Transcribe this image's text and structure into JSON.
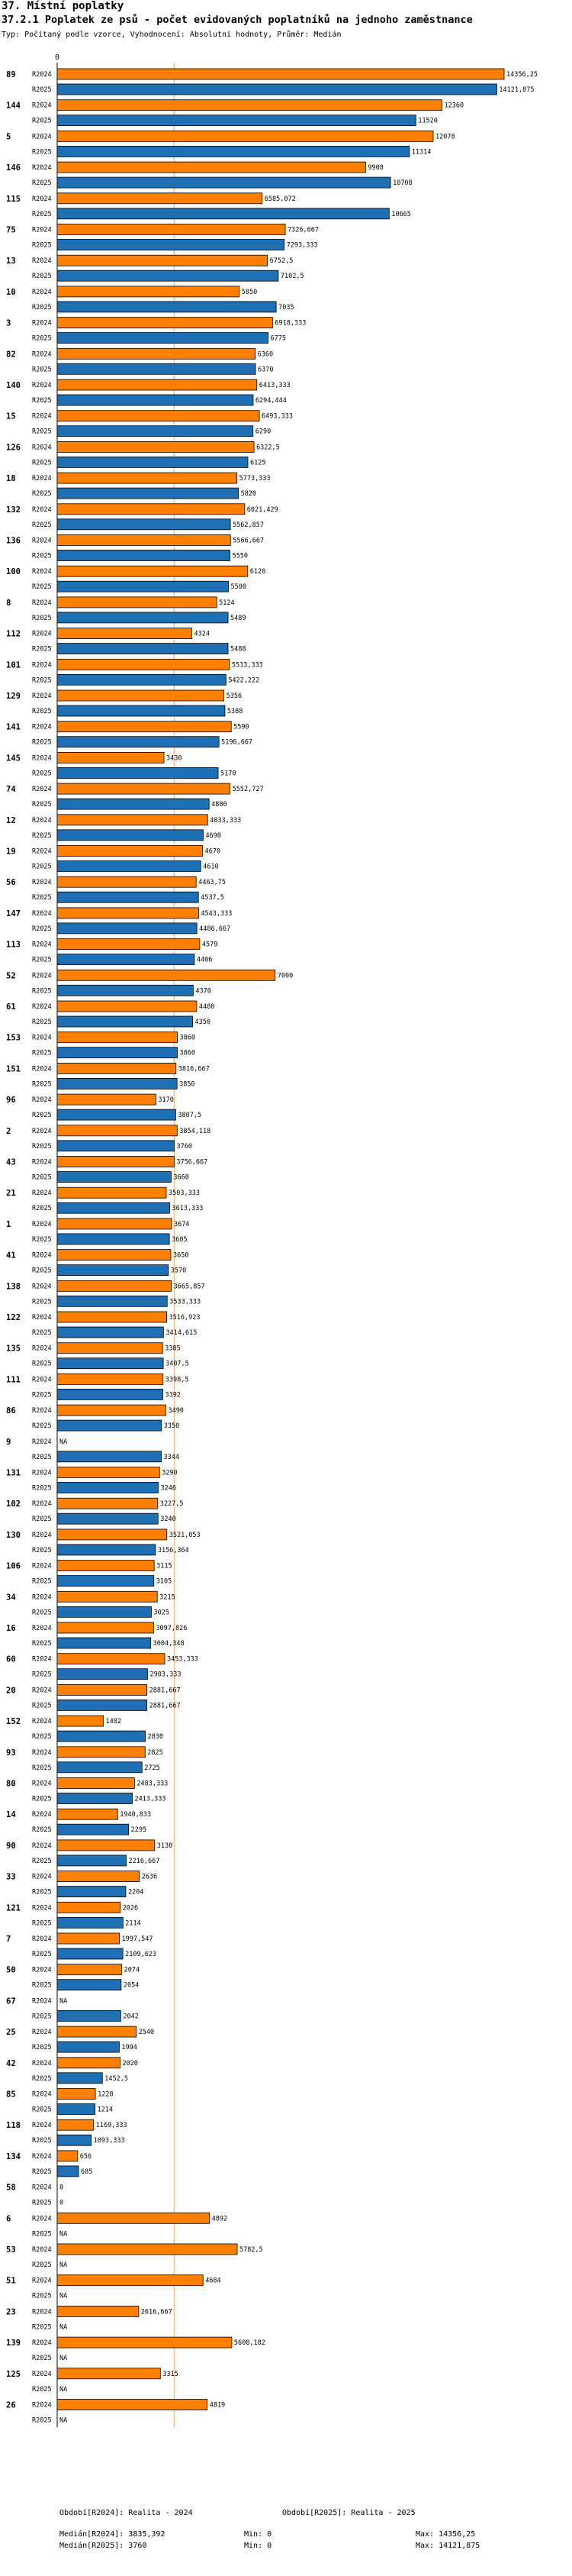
{
  "header": {
    "title": "37. Místní poplatky",
    "subtitle": "37.2.1 Poplatek ze psů - počet evidovaných poplatníků na jednoho zaměstnance",
    "meta": "Typ: Počítaný podle vzorce, Vyhodnocení: Absolutní hodnoty, Průměr: Medián"
  },
  "colors": {
    "r2024": "#ff8000",
    "r2025": "#1f6fb5",
    "median": "#f4c08a",
    "axis": "#000000"
  },
  "chart_data": {
    "type": "bar",
    "orientation": "horizontal",
    "title": "37.2.1 Poplatek ze psů - počet evidovaných poplatníků na jednoho zaměstnance",
    "axis_zero_label": "0",
    "xlim": [
      0,
      14356.25
    ],
    "median": 3760,
    "series_names": [
      "R2024",
      "R2025"
    ],
    "groups": [
      {
        "id": "89",
        "r2024": 14356.25,
        "l2024": "14356,25",
        "r2025": 14121.875,
        "l2025": "14121,875"
      },
      {
        "id": "144",
        "r2024": 12360,
        "l2024": "12360",
        "r2025": 11520,
        "l2025": "11520"
      },
      {
        "id": "5",
        "r2024": 12078,
        "l2024": "12078",
        "r2025": 11314,
        "l2025": "11314"
      },
      {
        "id": "146",
        "r2024": 9908,
        "l2024": "9908",
        "r2025": 10708,
        "l2025": "10708"
      },
      {
        "id": "115",
        "r2024": 6585.072,
        "l2024": "6585,072",
        "r2025": 10665,
        "l2025": "10665"
      },
      {
        "id": "75",
        "r2024": 7326.667,
        "l2024": "7326,667",
        "r2025": 7293.333,
        "l2025": "7293,333"
      },
      {
        "id": "13",
        "r2024": 6752.5,
        "l2024": "6752,5",
        "r2025": 7102.5,
        "l2025": "7102,5"
      },
      {
        "id": "10",
        "r2024": 5850,
        "l2024": "5850",
        "r2025": 7035,
        "l2025": "7035"
      },
      {
        "id": "3",
        "r2024": 6918.333,
        "l2024": "6918,333",
        "r2025": 6775,
        "l2025": "6775"
      },
      {
        "id": "82",
        "r2024": 6360,
        "l2024": "6360",
        "r2025": 6370,
        "l2025": "6370"
      },
      {
        "id": "140",
        "r2024": 6413.333,
        "l2024": "6413,333",
        "r2025": 6294.444,
        "l2025": "6294,444"
      },
      {
        "id": "15",
        "r2024": 6493.333,
        "l2024": "6493,333",
        "r2025": 6290,
        "l2025": "6290"
      },
      {
        "id": "126",
        "r2024": 6322.5,
        "l2024": "6322,5",
        "r2025": 6125,
        "l2025": "6125"
      },
      {
        "id": "18",
        "r2024": 5773.333,
        "l2024": "5773,333",
        "r2025": 5820,
        "l2025": "5820"
      },
      {
        "id": "132",
        "r2024": 6021.429,
        "l2024": "6021,429",
        "r2025": 5562.857,
        "l2025": "5562,857"
      },
      {
        "id": "136",
        "r2024": 5566.667,
        "l2024": "5566,667",
        "r2025": 5550,
        "l2025": "5550"
      },
      {
        "id": "100",
        "r2024": 6120,
        "l2024": "6120",
        "r2025": 5500,
        "l2025": "5500"
      },
      {
        "id": "8",
        "r2024": 5124,
        "l2024": "5124",
        "r2025": 5489,
        "l2025": "5489"
      },
      {
        "id": "112",
        "r2024": 4324,
        "l2024": "4324",
        "r2025": 5488,
        "l2025": "5488"
      },
      {
        "id": "101",
        "r2024": 5533.333,
        "l2024": "5533,333",
        "r2025": 5422.222,
        "l2025": "5422,222"
      },
      {
        "id": "129",
        "r2024": 5356,
        "l2024": "5356",
        "r2025": 5388,
        "l2025": "5388"
      },
      {
        "id": "141",
        "r2024": 5590,
        "l2024": "5590",
        "r2025": 5196.667,
        "l2025": "5196,667"
      },
      {
        "id": "145",
        "r2024": 3430,
        "l2024": "3430",
        "r2025": 5170,
        "l2025": "5170"
      },
      {
        "id": "74",
        "r2024": 5552.727,
        "l2024": "5552,727",
        "r2025": 4880,
        "l2025": "4880"
      },
      {
        "id": "12",
        "r2024": 4833.333,
        "l2024": "4833,333",
        "r2025": 4690,
        "l2025": "4690"
      },
      {
        "id": "19",
        "r2024": 4670,
        "l2024": "4670",
        "r2025": 4610,
        "l2025": "4610"
      },
      {
        "id": "56",
        "r2024": 4463.75,
        "l2024": "4463,75",
        "r2025": 4537.5,
        "l2025": "4537,5"
      },
      {
        "id": "147",
        "r2024": 4543.333,
        "l2024": "4543,333",
        "r2025": 4486.667,
        "l2025": "4486,667"
      },
      {
        "id": "113",
        "r2024": 4579,
        "l2024": "4579",
        "r2025": 4406,
        "l2025": "4406"
      },
      {
        "id": "52",
        "r2024": 7000,
        "l2024": "7000",
        "r2025": 4370,
        "l2025": "4370"
      },
      {
        "id": "61",
        "r2024": 4480,
        "l2024": "4480",
        "r2025": 4350,
        "l2025": "4350"
      },
      {
        "id": "153",
        "r2024": 3860,
        "l2024": "3860",
        "r2025": 3860,
        "l2025": "3860"
      },
      {
        "id": "151",
        "r2024": 3816.667,
        "l2024": "3816,667",
        "r2025": 3850,
        "l2025": "3850"
      },
      {
        "id": "96",
        "r2024": 3170,
        "l2024": "3170",
        "r2025": 3807.5,
        "l2025": "3807,5"
      },
      {
        "id": "2",
        "r2024": 3854.118,
        "l2024": "3854,118",
        "r2025": 3760,
        "l2025": "3760"
      },
      {
        "id": "43",
        "r2024": 3756.667,
        "l2024": "3756,667",
        "r2025": 3660,
        "l2025": "3660"
      },
      {
        "id": "21",
        "r2024": 3503.333,
        "l2024": "3503,333",
        "r2025": 3613.333,
        "l2025": "3613,333"
      },
      {
        "id": "1",
        "r2024": 3674,
        "l2024": "3674",
        "r2025": 3605,
        "l2025": "3605"
      },
      {
        "id": "41",
        "r2024": 3650,
        "l2024": "3650",
        "r2025": 3570,
        "l2025": "3570"
      },
      {
        "id": "138",
        "r2024": 3665.857,
        "l2024": "3665,857",
        "r2025": 3533.333,
        "l2025": "3533,333"
      },
      {
        "id": "122",
        "r2024": 3516.923,
        "l2024": "3516,923",
        "r2025": 3414.615,
        "l2025": "3414,615"
      },
      {
        "id": "135",
        "r2024": 3385,
        "l2024": "3385",
        "r2025": 3407.5,
        "l2025": "3407,5"
      },
      {
        "id": "111",
        "r2024": 3398.5,
        "l2024": "3398,5",
        "r2025": 3392,
        "l2025": "3392"
      },
      {
        "id": "86",
        "r2024": 3490,
        "l2024": "3490",
        "r2025": 3350,
        "l2025": "3350"
      },
      {
        "id": "9",
        "r2024": null,
        "l2024": "NA",
        "r2025": 3344,
        "l2025": "3344"
      },
      {
        "id": "131",
        "r2024": 3290,
        "l2024": "3290",
        "r2025": 3246,
        "l2025": "3246"
      },
      {
        "id": "102",
        "r2024": 3227.5,
        "l2024": "3227,5",
        "r2025": 3240,
        "l2025": "3240"
      },
      {
        "id": "130",
        "r2024": 3521.053,
        "l2024": "3521,053",
        "r2025": 3156.364,
        "l2025": "3156,364"
      },
      {
        "id": "106",
        "r2024": 3115,
        "l2024": "3115",
        "r2025": 3105,
        "l2025": "3105"
      },
      {
        "id": "34",
        "r2024": 3215,
        "l2024": "3215",
        "r2025": 3025,
        "l2025": "3025"
      },
      {
        "id": "16",
        "r2024": 3097.826,
        "l2024": "3097,826",
        "r2025": 3004.348,
        "l2025": "3004,348"
      },
      {
        "id": "60",
        "r2024": 3453.333,
        "l2024": "3453,333",
        "r2025": 2903.333,
        "l2025": "2903,333"
      },
      {
        "id": "20",
        "r2024": 2881.667,
        "l2024": "2881,667",
        "r2025": 2881.667,
        "l2025": "2881,667"
      },
      {
        "id": "152",
        "r2024": 1482,
        "l2024": "1482",
        "r2025": 2830,
        "l2025": "2830"
      },
      {
        "id": "93",
        "r2024": 2825,
        "l2024": "2825",
        "r2025": 2725,
        "l2025": "2725"
      },
      {
        "id": "80",
        "r2024": 2483.333,
        "l2024": "2483,333",
        "r2025": 2413.333,
        "l2025": "2413,333"
      },
      {
        "id": "14",
        "r2024": 1940.833,
        "l2024": "1940,833",
        "r2025": 2295,
        "l2025": "2295"
      },
      {
        "id": "90",
        "r2024": 3130,
        "l2024": "3130",
        "r2025": 2216.667,
        "l2025": "2216,667"
      },
      {
        "id": "33",
        "r2024": 2636,
        "l2024": "2636",
        "r2025": 2204,
        "l2025": "2204"
      },
      {
        "id": "121",
        "r2024": 2026,
        "l2024": "2026",
        "r2025": 2114,
        "l2025": "2114"
      },
      {
        "id": "7",
        "r2024": 1997.547,
        "l2024": "1997,547",
        "r2025": 2109.623,
        "l2025": "2109,623"
      },
      {
        "id": "50",
        "r2024": 2074,
        "l2024": "2074",
        "r2025": 2054,
        "l2025": "2054"
      },
      {
        "id": "67",
        "r2024": null,
        "l2024": "NA",
        "r2025": 2042,
        "l2025": "2042"
      },
      {
        "id": "25",
        "r2024": 2540,
        "l2024": "2540",
        "r2025": 1994,
        "l2025": "1994"
      },
      {
        "id": "42",
        "r2024": 2020,
        "l2024": "2020",
        "r2025": 1452.5,
        "l2025": "1452,5"
      },
      {
        "id": "85",
        "r2024": 1228,
        "l2024": "1228",
        "r2025": 1214,
        "l2025": "1214"
      },
      {
        "id": "118",
        "r2024": 1169.333,
        "l2024": "1169,333",
        "r2025": 1093.333,
        "l2025": "1093,333"
      },
      {
        "id": "134",
        "r2024": 656,
        "l2024": "656",
        "r2025": 685,
        "l2025": "685"
      },
      {
        "id": "58",
        "r2024": 0,
        "l2024": "0",
        "r2025": 0,
        "l2025": "0"
      },
      {
        "id": "6",
        "r2024": 4892,
        "l2024": "4892",
        "r2025": null,
        "l2025": "NA"
      },
      {
        "id": "53",
        "r2024": 5782.5,
        "l2024": "5782,5",
        "r2025": null,
        "l2025": "NA"
      },
      {
        "id": "51",
        "r2024": 4684,
        "l2024": "4684",
        "r2025": null,
        "l2025": "NA"
      },
      {
        "id": "23",
        "r2024": 2616.667,
        "l2024": "2616,667",
        "r2025": null,
        "l2025": "NA"
      },
      {
        "id": "139",
        "r2024": 5608.182,
        "l2024": "5608,182",
        "r2025": null,
        "l2025": "NA"
      },
      {
        "id": "125",
        "r2024": 3315,
        "l2024": "3315",
        "r2025": null,
        "l2025": "NA"
      },
      {
        "id": "26",
        "r2024": 4819,
        "l2024": "4819",
        "r2025": null,
        "l2025": "NA"
      }
    ]
  },
  "footer": {
    "period2024": "Období[R2024]: Realita - 2024",
    "period2025": "Období[R2025]: Realita - 2025",
    "median2024": "Medián[R2024]: 3835,392",
    "median2025": "Medián[R2025]: 3760",
    "min2024": "Min: 0",
    "min2025": "Min: 0",
    "max2024": "Max: 14356,25",
    "max2025": "Max: 14121,875"
  }
}
